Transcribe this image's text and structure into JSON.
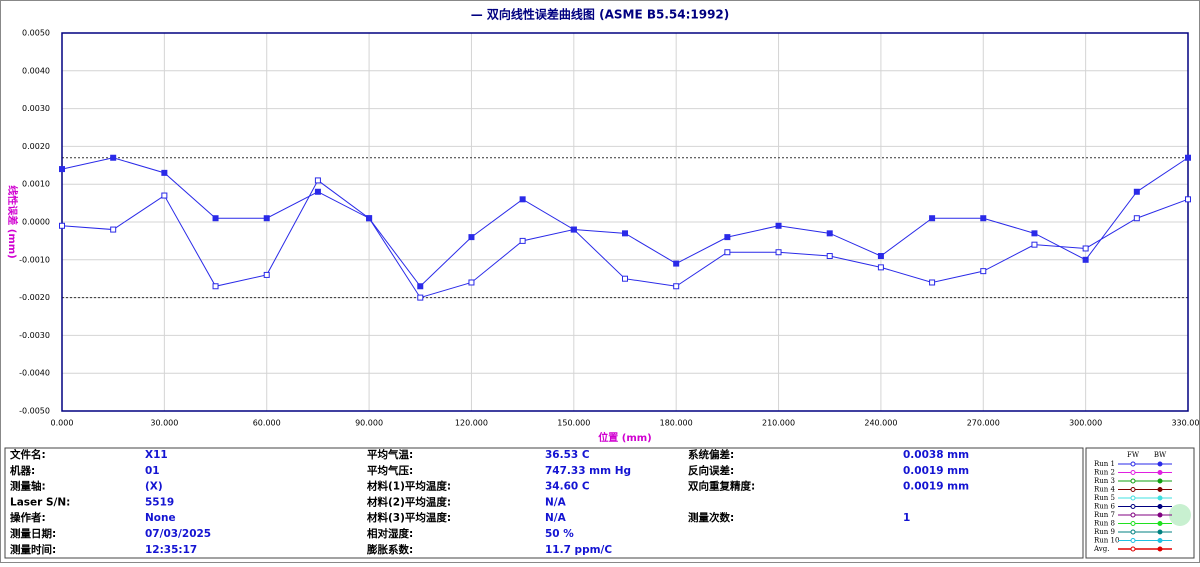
{
  "chart_data": {
    "type": "line",
    "title": "— 双向线性误差曲线图  (ASME B5.54:1992)",
    "x_label": "位置 (mm)",
    "y_label": "线性误差 (mm)",
    "x": [
      0,
      15,
      30,
      45,
      60,
      75,
      90,
      105,
      120,
      135,
      150,
      165,
      180,
      195,
      210,
      225,
      240,
      255,
      270,
      285,
      300,
      315,
      330
    ],
    "series": [
      {
        "name": "FW",
        "color": "#2a2ae8",
        "marker": "open",
        "values": [
          -0.0001,
          -0.0002,
          0.0007,
          -0.0017,
          -0.0014,
          0.0011,
          0.0001,
          -0.002,
          -0.0016,
          -0.0005,
          -0.0002,
          -0.0015,
          -0.0017,
          -0.0008,
          -0.0008,
          -0.0009,
          -0.0012,
          -0.0016,
          -0.0013,
          -0.0006,
          -0.0007,
          0.0001,
          0.0006
        ]
      },
      {
        "name": "BW",
        "color": "#2a2ae8",
        "marker": "filled",
        "values": [
          0.0014,
          0.0017,
          0.0013,
          0.0001,
          0.0001,
          0.0008,
          0.0001,
          -0.0017,
          -0.0004,
          0.0006,
          -0.0002,
          -0.0003,
          -0.0011,
          -0.0004,
          -0.0001,
          -0.0003,
          -0.0009,
          0.0001,
          0.0001,
          -0.0003,
          -0.001,
          0.0008,
          0.0017
        ]
      }
    ],
    "reference_lines": [
      0.0017,
      -0.002
    ],
    "xlim": [
      0,
      330
    ],
    "xticks": [
      {
        "value": 0,
        "label": "0.000"
      },
      {
        "value": 30,
        "label": "30.000"
      },
      {
        "value": 60,
        "label": "60.000"
      },
      {
        "value": 90,
        "label": "90.000"
      },
      {
        "value": 120,
        "label": "120.000"
      },
      {
        "value": 150,
        "label": "150.000"
      },
      {
        "value": 180,
        "label": "180.000"
      },
      {
        "value": 210,
        "label": "210.000"
      },
      {
        "value": 240,
        "label": "240.000"
      },
      {
        "value": 270,
        "label": "270.000"
      },
      {
        "value": 300,
        "label": "300.000"
      },
      {
        "value": 330,
        "label": "330.000"
      }
    ],
    "ylim": [
      -0.005,
      0.005
    ],
    "yticks": [
      {
        "value": 0.005,
        "label": "0.0050"
      },
      {
        "value": 0.004,
        "label": "0.0040"
      },
      {
        "value": 0.003,
        "label": "0.0030"
      },
      {
        "value": 0.002,
        "label": "0.0020"
      },
      {
        "value": 0.001,
        "label": "0.0010"
      },
      {
        "value": 0,
        "label": "0.0000"
      },
      {
        "value": -0.001,
        "label": "-0.0010"
      },
      {
        "value": -0.002,
        "label": "-0.0020"
      },
      {
        "value": -0.003,
        "label": "-0.0030"
      },
      {
        "value": -0.004,
        "label": "-0.0040"
      },
      {
        "value": -0.005,
        "label": "-0.0050"
      }
    ],
    "grid": true
  },
  "info": {
    "columns": [
      [
        [
          "文件名:",
          "X11"
        ],
        [
          "机器:",
          "01"
        ],
        [
          "测量轴:",
          "(X)"
        ],
        [
          "Laser S/N:",
          "5519"
        ],
        [
          "操作者:",
          "None"
        ],
        [
          "测量日期:",
          "07/03/2025"
        ],
        [
          "测量时间:",
          "12:35:17"
        ]
      ],
      [
        [
          "平均气温:",
          "36.53 C"
        ],
        [
          "平均气压:",
          "747.33 mm Hg"
        ],
        [
          "材料(1)平均温度:",
          "34.60 C"
        ],
        [
          "材料(2)平均温度:",
          "N/A"
        ],
        [
          "材料(3)平均温度:",
          "N/A"
        ],
        [
          "相对湿度:",
          "50 %"
        ],
        [
          "膨胀系数:",
          "11.7 ppm/C"
        ]
      ],
      [
        [
          "系统偏差:",
          "0.0038 mm"
        ],
        [
          "反向误差:",
          "0.0019 mm"
        ],
        [
          "双向重复精度:",
          "0.0019 mm"
        ],
        null,
        [
          "测量次数:",
          "1"
        ]
      ]
    ]
  },
  "legend": {
    "entries": [
      {
        "name": "Run 1",
        "color": "#2a2ae8"
      },
      {
        "name": "Run 2",
        "color": "#e020e0"
      },
      {
        "name": "Run 3",
        "color": "#10a010"
      },
      {
        "name": "Run 4",
        "color": "#800000"
      },
      {
        "name": "Run 5",
        "color": "#40e0e0"
      },
      {
        "name": "Run 6",
        "color": "#000080"
      },
      {
        "name": "Run 7",
        "color": "#800080"
      },
      {
        "name": "Run 8",
        "color": "#20e020"
      },
      {
        "name": "Run 9",
        "color": "#008080"
      },
      {
        "name": "Run 10",
        "color": "#20c0e0"
      },
      {
        "name": "Avg.",
        "color": "#e00000"
      }
    ]
  }
}
